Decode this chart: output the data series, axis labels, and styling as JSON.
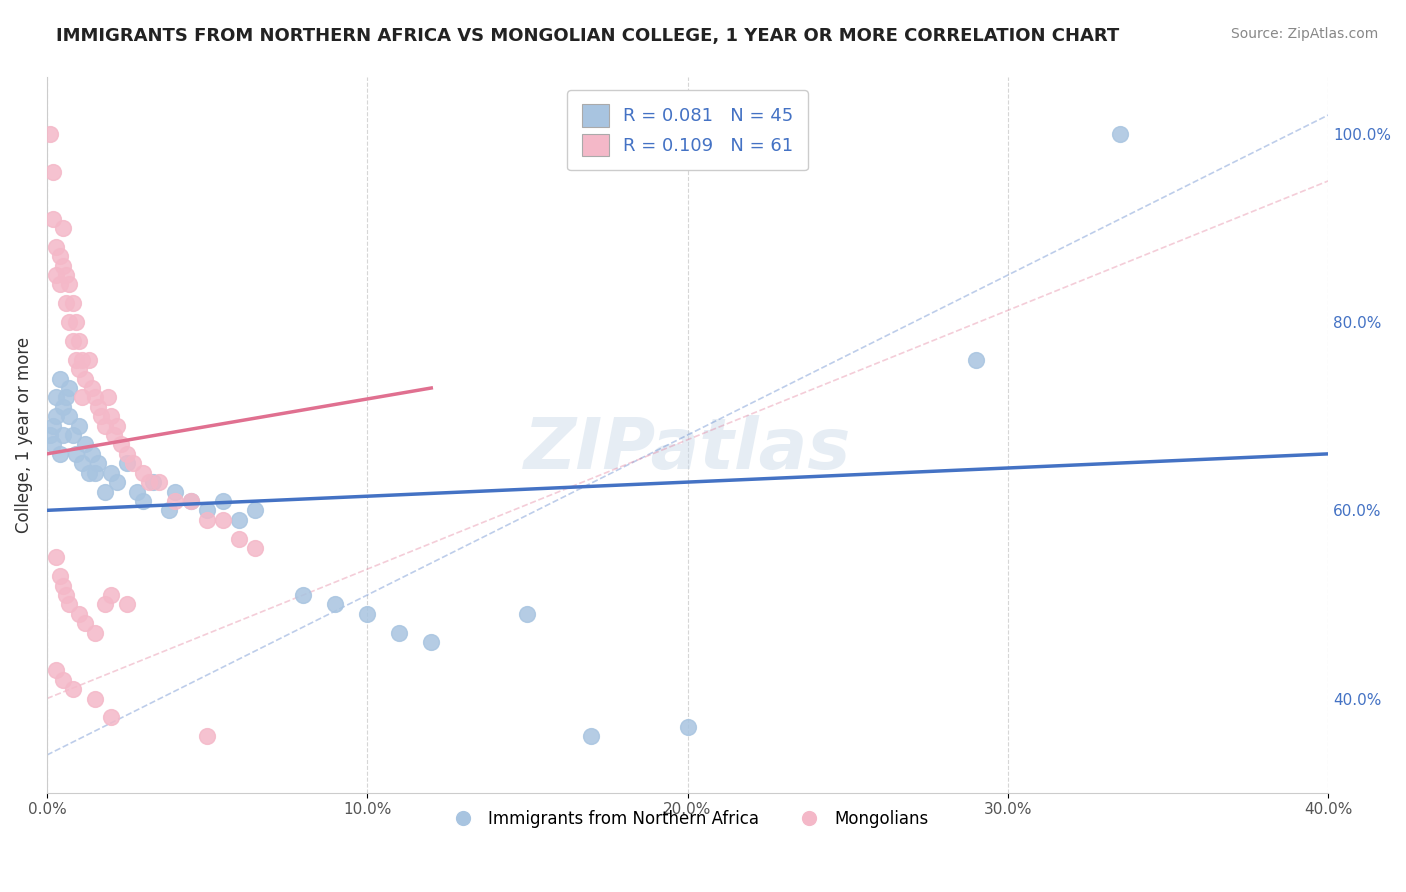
{
  "title": "IMMIGRANTS FROM NORTHERN AFRICA VS MONGOLIAN COLLEGE, 1 YEAR OR MORE CORRELATION CHART",
  "source": "Source: ZipAtlas.com",
  "ylabel": "College, 1 year or more",
  "xlim": [
    0.0,
    0.4
  ],
  "ylim": [
    0.3,
    1.06
  ],
  "xticks": [
    0.0,
    0.1,
    0.2,
    0.3,
    0.4
  ],
  "xticklabels": [
    "0.0%",
    "10.0%",
    "20.0%",
    "30.0%",
    "40.0%"
  ],
  "yticks_right": [
    0.4,
    0.6,
    0.8,
    1.0
  ],
  "yticklabels_right": [
    "40.0%",
    "60.0%",
    "80.0%",
    "100.0%"
  ],
  "watermark": "ZIPatlas",
  "blue_color": "#a8c4e0",
  "blue_line_color": "#4472c4",
  "pink_color": "#f4b8c8",
  "pink_line_color": "#e07090",
  "blue_scatter": [
    [
      0.001,
      0.68
    ],
    [
      0.002,
      0.67
    ],
    [
      0.002,
      0.69
    ],
    [
      0.003,
      0.72
    ],
    [
      0.003,
      0.7
    ],
    [
      0.004,
      0.74
    ],
    [
      0.004,
      0.66
    ],
    [
      0.005,
      0.71
    ],
    [
      0.005,
      0.68
    ],
    [
      0.006,
      0.72
    ],
    [
      0.007,
      0.7
    ],
    [
      0.007,
      0.73
    ],
    [
      0.008,
      0.68
    ],
    [
      0.009,
      0.66
    ],
    [
      0.01,
      0.69
    ],
    [
      0.011,
      0.65
    ],
    [
      0.012,
      0.67
    ],
    [
      0.013,
      0.64
    ],
    [
      0.014,
      0.66
    ],
    [
      0.015,
      0.64
    ],
    [
      0.016,
      0.65
    ],
    [
      0.018,
      0.62
    ],
    [
      0.02,
      0.64
    ],
    [
      0.022,
      0.63
    ],
    [
      0.025,
      0.65
    ],
    [
      0.028,
      0.62
    ],
    [
      0.03,
      0.61
    ],
    [
      0.033,
      0.63
    ],
    [
      0.038,
      0.6
    ],
    [
      0.04,
      0.62
    ],
    [
      0.045,
      0.61
    ],
    [
      0.05,
      0.6
    ],
    [
      0.055,
      0.61
    ],
    [
      0.06,
      0.59
    ],
    [
      0.065,
      0.6
    ],
    [
      0.08,
      0.51
    ],
    [
      0.09,
      0.5
    ],
    [
      0.1,
      0.49
    ],
    [
      0.11,
      0.47
    ],
    [
      0.12,
      0.46
    ],
    [
      0.15,
      0.49
    ],
    [
      0.17,
      0.36
    ],
    [
      0.2,
      0.37
    ],
    [
      0.29,
      0.76
    ],
    [
      0.335,
      1.0
    ]
  ],
  "pink_scatter": [
    [
      0.001,
      1.0
    ],
    [
      0.002,
      0.96
    ],
    [
      0.002,
      0.91
    ],
    [
      0.003,
      0.88
    ],
    [
      0.003,
      0.85
    ],
    [
      0.004,
      0.87
    ],
    [
      0.004,
      0.84
    ],
    [
      0.005,
      0.9
    ],
    [
      0.005,
      0.86
    ],
    [
      0.006,
      0.85
    ],
    [
      0.006,
      0.82
    ],
    [
      0.007,
      0.84
    ],
    [
      0.007,
      0.8
    ],
    [
      0.008,
      0.82
    ],
    [
      0.008,
      0.78
    ],
    [
      0.009,
      0.8
    ],
    [
      0.009,
      0.76
    ],
    [
      0.01,
      0.78
    ],
    [
      0.01,
      0.75
    ],
    [
      0.011,
      0.76
    ],
    [
      0.011,
      0.72
    ],
    [
      0.012,
      0.74
    ],
    [
      0.013,
      0.76
    ],
    [
      0.014,
      0.73
    ],
    [
      0.015,
      0.72
    ],
    [
      0.016,
      0.71
    ],
    [
      0.017,
      0.7
    ],
    [
      0.018,
      0.69
    ],
    [
      0.019,
      0.72
    ],
    [
      0.02,
      0.7
    ],
    [
      0.021,
      0.68
    ],
    [
      0.022,
      0.69
    ],
    [
      0.023,
      0.67
    ],
    [
      0.025,
      0.66
    ],
    [
      0.027,
      0.65
    ],
    [
      0.03,
      0.64
    ],
    [
      0.032,
      0.63
    ],
    [
      0.035,
      0.63
    ],
    [
      0.04,
      0.61
    ],
    [
      0.045,
      0.61
    ],
    [
      0.05,
      0.59
    ],
    [
      0.055,
      0.59
    ],
    [
      0.06,
      0.57
    ],
    [
      0.065,
      0.56
    ],
    [
      0.003,
      0.55
    ],
    [
      0.004,
      0.53
    ],
    [
      0.005,
      0.52
    ],
    [
      0.006,
      0.51
    ],
    [
      0.007,
      0.5
    ],
    [
      0.01,
      0.49
    ],
    [
      0.012,
      0.48
    ],
    [
      0.015,
      0.47
    ],
    [
      0.018,
      0.5
    ],
    [
      0.02,
      0.51
    ],
    [
      0.025,
      0.5
    ],
    [
      0.003,
      0.43
    ],
    [
      0.005,
      0.42
    ],
    [
      0.008,
      0.41
    ],
    [
      0.015,
      0.4
    ],
    [
      0.02,
      0.38
    ],
    [
      0.05,
      0.36
    ]
  ],
  "blue_solid_line": [
    [
      0.0,
      0.6
    ],
    [
      0.4,
      0.66
    ]
  ],
  "pink_solid_line": [
    [
      0.0,
      0.66
    ],
    [
      0.12,
      0.73
    ]
  ],
  "blue_dashed_line": [
    [
      0.0,
      0.34
    ],
    [
      0.4,
      1.02
    ]
  ],
  "pink_dashed_line": [
    [
      0.0,
      0.4
    ],
    [
      0.4,
      0.95
    ]
  ]
}
